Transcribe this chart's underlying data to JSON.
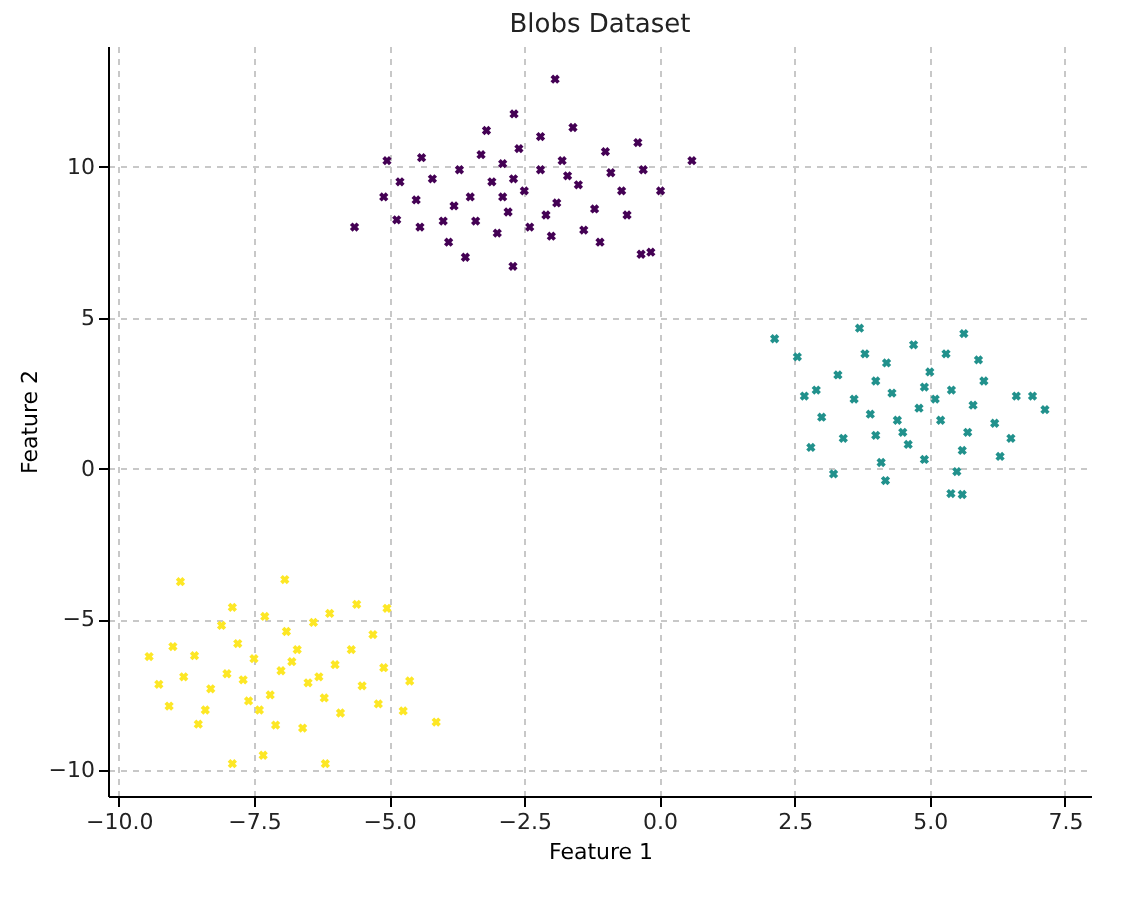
{
  "chart_data": {
    "type": "scatter",
    "title": "Blobs Dataset",
    "xlabel": "Feature 1",
    "ylabel": "Feature 2",
    "marker": "cross",
    "grid": true,
    "xlim": [
      -10.2,
      8.0
    ],
    "ylim": [
      -10.85,
      14.0
    ],
    "xticks": [
      {
        "value": -10,
        "label": "−10.0"
      },
      {
        "value": -7.5,
        "label": "−7.5"
      },
      {
        "value": -5,
        "label": "−5.0"
      },
      {
        "value": -2.5,
        "label": "−2.5"
      },
      {
        "value": 0,
        "label": "0.0"
      },
      {
        "value": 2.5,
        "label": "2.5"
      },
      {
        "value": 5,
        "label": "5.0"
      },
      {
        "value": 7.5,
        "label": "7.5"
      }
    ],
    "yticks": [
      {
        "value": -10,
        "label": "−10"
      },
      {
        "value": -5,
        "label": "−5"
      },
      0,
      5,
      10
    ],
    "series": [
      {
        "color": "#440154",
        "x": [
          -1.93,
          0.6,
          -5.64,
          -5.04,
          -5.1,
          -2.69,
          -0.4,
          0.02,
          -0.16,
          -0.34,
          -2.71,
          -4.86,
          -3.59,
          -4.43,
          -2.5,
          -3.1,
          -1.9,
          -2.8,
          -2.2,
          -3.5,
          -1.5,
          -2.9,
          -3.8,
          -1.2,
          -2.4,
          -3.3,
          -1.8,
          -4.2,
          -0.9,
          -2.0,
          -3.0,
          -4.0,
          -1.4,
          -2.6,
          -3.7,
          -1.0,
          -4.5,
          -0.6,
          -2.2,
          -3.2,
          -1.6,
          -4.4,
          -0.7,
          -2.7,
          -2.1,
          -3.4,
          -1.7,
          -2.9,
          -3.9,
          -1.1,
          -0.3,
          -4.8
        ],
        "values": [
          12.9,
          10.2,
          8.0,
          10.2,
          9.0,
          11.75,
          10.8,
          9.2,
          7.17,
          7.1,
          6.7,
          8.24,
          7.0,
          8.0,
          9.2,
          9.5,
          8.8,
          8.5,
          9.9,
          9.0,
          9.4,
          10.1,
          8.7,
          8.6,
          8.0,
          10.4,
          10.2,
          9.6,
          9.8,
          7.7,
          7.8,
          8.2,
          7.9,
          10.6,
          9.9,
          10.5,
          8.9,
          8.4,
          11.0,
          11.2,
          11.3,
          10.3,
          9.2,
          9.6,
          8.4,
          8.2,
          9.7,
          9.0,
          7.5,
          7.5,
          9.9,
          9.5
        ]
      },
      {
        "color": "#21918c",
        "x": [
          2.13,
          2.55,
          3.7,
          5.63,
          5.39,
          5.6,
          7.13,
          6.9,
          2.8,
          3.22,
          4.18,
          2.68,
          4.8,
          4.3,
          5.2,
          4.5,
          5.4,
          3.9,
          5.8,
          4.0,
          5.0,
          4.6,
          6.2,
          3.6,
          5.6,
          4.2,
          5.3,
          3.4,
          6.0,
          4.9,
          6.5,
          3.3,
          4.1,
          5.9,
          4.7,
          6.6,
          3.0,
          5.5,
          4.4,
          5.1,
          3.8,
          6.3,
          2.9,
          4.9,
          5.7,
          4.0
        ],
        "values": [
          4.3,
          3.7,
          4.65,
          4.47,
          -0.83,
          -0.86,
          1.95,
          2.4,
          0.7,
          -0.18,
          -0.4,
          2.4,
          2.0,
          2.5,
          1.6,
          1.2,
          2.6,
          1.8,
          2.1,
          2.9,
          3.2,
          0.8,
          1.5,
          2.3,
          0.6,
          3.5,
          3.8,
          1.0,
          2.9,
          0.3,
          1.0,
          3.1,
          0.2,
          3.6,
          4.1,
          2.4,
          1.7,
          -0.1,
          1.6,
          2.3,
          3.8,
          0.4,
          2.6,
          2.7,
          1.2,
          1.1
        ]
      },
      {
        "color": "#fde725",
        "x": [
          -8.86,
          -6.93,
          -4.13,
          -7.9,
          -6.18,
          -7.33,
          -9.44,
          -9.26,
          -9.07,
          -5.04,
          -4.62,
          -4.74,
          -8.53,
          -7.0,
          -7.5,
          -6.5,
          -7.2,
          -6.7,
          -8.0,
          -6.0,
          -7.8,
          -6.2,
          -7.4,
          -5.7,
          -8.3,
          -6.9,
          -5.5,
          -8.6,
          -7.1,
          -6.4,
          -8.1,
          -5.3,
          -7.7,
          -6.8,
          -5.9,
          -8.8,
          -7.3,
          -6.1,
          -5.1,
          -8.4,
          -6.6,
          -7.9,
          -5.6,
          -9.0,
          -6.3,
          -7.6,
          -5.2
        ],
        "values": [
          -3.75,
          -3.68,
          -8.4,
          -9.78,
          -9.78,
          -9.5,
          -6.23,
          -7.15,
          -7.87,
          -4.63,
          -7.04,
          -8.03,
          -8.47,
          -6.7,
          -6.3,
          -7.1,
          -7.5,
          -6.0,
          -6.8,
          -6.5,
          -5.8,
          -7.6,
          -8.0,
          -6.0,
          -7.3,
          -5.4,
          -7.2,
          -6.2,
          -8.5,
          -5.1,
          -5.2,
          -5.5,
          -7.0,
          -6.4,
          -8.1,
          -6.9,
          -4.9,
          -4.8,
          -6.6,
          -8.0,
          -8.6,
          -4.6,
          -4.5,
          -5.9,
          -6.9,
          -7.7,
          -7.8
        ]
      }
    ]
  }
}
